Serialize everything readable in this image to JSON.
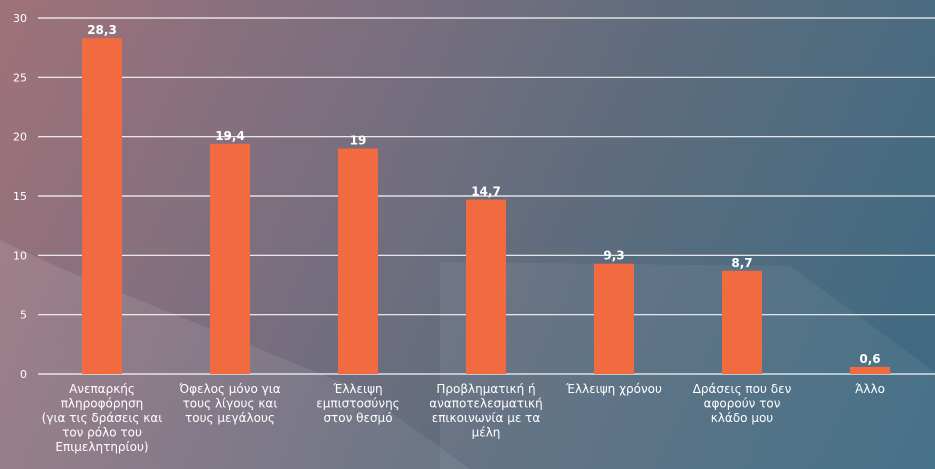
{
  "chart_data": {
    "type": "bar",
    "ylim": [
      0,
      30
    ],
    "yticks": [
      "0",
      "5",
      "10",
      "15",
      "20",
      "25",
      "30"
    ],
    "grid": true,
    "categories": [
      [
        "Ανεπαρκής",
        "πληροφόρηση",
        "(για τις δράσεις και",
        "τον ρόλο του",
        "Επιμελητηρίου)"
      ],
      [
        "Όφελος μόνο για",
        "τους λίγους και",
        "τους μεγάλους"
      ],
      [
        "Έλλειψη",
        "εμπιστοσύνης",
        "στον θεσμό"
      ],
      [
        "Προβληματική ή",
        "αναποτελεσματική",
        "επικοινωνία με τα",
        "μέλη"
      ],
      [
        "Έλλειψη χρόνου"
      ],
      [
        "Δράσεις που δεν",
        "αφορούν τον",
        "κλάδο μου"
      ],
      [
        "Άλλο"
      ]
    ],
    "values": [
      28.3,
      19.4,
      19,
      14.7,
      9.3,
      8.7,
      0.6
    ],
    "value_labels": [
      "28,3",
      "19,4",
      "19",
      "14,7",
      "9,3",
      "8,7",
      "0,6"
    ],
    "colors": {
      "bar": "#f26a3f",
      "grid": "#ffffff",
      "text": "#ffffff"
    }
  }
}
